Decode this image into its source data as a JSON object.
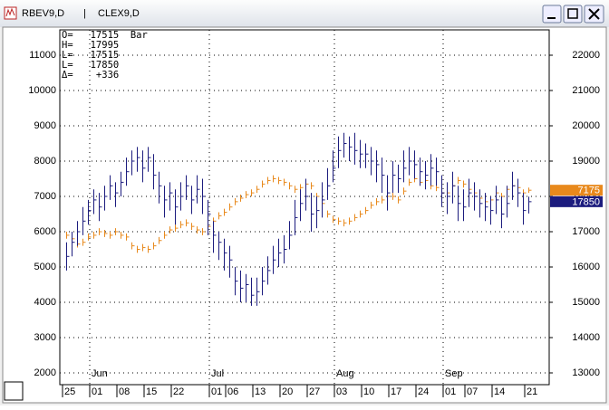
{
  "chart_data": {
    "type": "ohlc",
    "info_lines": [
      "O=   17515  Bar",
      "H=   17995",
      "L=   17515",
      "L=   17850",
      "Δ=    +336"
    ],
    "categories": [
      "25",
      null,
      null,
      null,
      null,
      "01",
      null,
      null,
      null,
      null,
      "08",
      null,
      null,
      null,
      null,
      "15",
      null,
      null,
      null,
      null,
      "22",
      null,
      null,
      null,
      null,
      null,
      null,
      "01",
      null,
      null,
      "06",
      null,
      null,
      null,
      null,
      "13",
      null,
      null,
      null,
      null,
      "20",
      null,
      null,
      null,
      null,
      "27",
      null,
      null,
      null,
      null,
      "03",
      null,
      null,
      null,
      null,
      "10",
      null,
      null,
      null,
      null,
      "17",
      null,
      null,
      null,
      null,
      "24",
      null,
      null,
      null,
      null,
      "01",
      null,
      null,
      null,
      "07",
      null,
      null,
      null,
      null,
      "14",
      null,
      null,
      null,
      null,
      null,
      "21"
    ],
    "months": [
      null,
      null,
      null,
      null,
      null,
      "Jun",
      null,
      null,
      null,
      null,
      null,
      null,
      null,
      null,
      null,
      null,
      null,
      null,
      null,
      null,
      null,
      null,
      null,
      null,
      null,
      null,
      null,
      "Jul",
      null,
      null,
      null,
      null,
      null,
      null,
      null,
      null,
      null,
      null,
      null,
      null,
      null,
      null,
      null,
      null,
      null,
      null,
      null,
      null,
      null,
      null,
      "Aug",
      null,
      null,
      null,
      null,
      null,
      null,
      null,
      null,
      null,
      null,
      null,
      null,
      null,
      null,
      null,
      null,
      null,
      null,
      null,
      "Sep",
      null,
      null,
      null,
      null,
      null,
      null,
      null,
      null,
      null,
      null,
      null,
      null,
      null,
      null,
      null
    ],
    "ylim": [
      1667,
      11718
    ],
    "yticks": [
      2000,
      3000,
      4000,
      5000,
      6000,
      7000,
      8000,
      9000,
      10000,
      11000
    ],
    "y2lim": [
      12667,
      22718
    ],
    "y2ticks": [
      13000,
      14000,
      15000,
      16000,
      17000,
      18000,
      19000,
      20000,
      21000,
      22000
    ],
    "grid": true,
    "series": [
      {
        "name": "RBEV9,D",
        "color": "#e8891c",
        "axis": "y",
        "high": [
          6000,
          5900,
          5750,
          5800,
          5950,
          6000,
          6100,
          6050,
          6000,
          6100,
          6000,
          5950,
          5700,
          5600,
          5650,
          5600,
          5700,
          5850,
          6000,
          6150,
          6200,
          6300,
          6350,
          6250,
          6150,
          6100,
          6250,
          6400,
          6550,
          6650,
          6800,
          6950,
          7050,
          7150,
          7200,
          7300,
          7450,
          7550,
          7600,
          7550,
          7500,
          7400,
          7300,
          7350,
          7450,
          7400,
          7100,
          6900,
          6600,
          6450,
          6400,
          6350,
          6400,
          6500,
          6600,
          6700,
          6850,
          6950,
          7000,
          7100,
          7100,
          7000,
          7250,
          7500,
          7600,
          7500,
          7550,
          7400,
          7350,
          7200,
          7200,
          7400,
          7550,
          7450,
          7300,
          7200,
          7050,
          6950,
          7000,
          7200,
          7100,
          7300,
          7400,
          7350,
          7200,
          7250
        ],
        "low": [
          5800,
          5700,
          5550,
          5600,
          5750,
          5800,
          5900,
          5850,
          5800,
          5900,
          5800,
          5750,
          5500,
          5400,
          5450,
          5400,
          5500,
          5650,
          5800,
          5950,
          6000,
          6100,
          6150,
          6050,
          5950,
          5900,
          6050,
          6200,
          6350,
          6450,
          6600,
          6750,
          6850,
          6950,
          7000,
          7100,
          7250,
          7350,
          7400,
          7350,
          7300,
          7200,
          7100,
          7150,
          7250,
          7200,
          6900,
          6700,
          6400,
          6250,
          6200,
          6150,
          6200,
          6300,
          6400,
          6500,
          6650,
          6750,
          6800,
          6900,
          6900,
          6800,
          7050,
          7300,
          7400,
          7300,
          7350,
          7200,
          7150,
          7000,
          7000,
          7200,
          7350,
          7250,
          7100,
          7000,
          6850,
          6750,
          6800,
          7000,
          6900,
          7100,
          7200,
          7150,
          7000,
          7100
        ],
        "close": [
          5900,
          5800,
          5650,
          5700,
          5850,
          5900,
          6000,
          5950,
          5900,
          6000,
          5900,
          5850,
          5600,
          5500,
          5550,
          5500,
          5600,
          5750,
          5900,
          6050,
          6100,
          6200,
          6250,
          6150,
          6050,
          6000,
          6150,
          6300,
          6450,
          6550,
          6700,
          6850,
          6950,
          7050,
          7100,
          7200,
          7350,
          7450,
          7500,
          7450,
          7400,
          7300,
          7200,
          7250,
          7350,
          7300,
          7000,
          6800,
          6500,
          6350,
          6300,
          6250,
          6300,
          6400,
          6500,
          6600,
          6750,
          6850,
          6900,
          7000,
          7000,
          6900,
          7150,
          7400,
          7500,
          7400,
          7450,
          7300,
          7250,
          7100,
          7100,
          7300,
          7450,
          7350,
          7200,
          7100,
          6950,
          6850,
          6900,
          7100,
          7000,
          7200,
          7300,
          7250,
          7100,
          7175
        ]
      },
      {
        "name": "CLEX9,D",
        "color": "#1c1c7e",
        "axis": "y2",
        "high": [
          16700,
          17000,
          17300,
          17700,
          17900,
          18200,
          18100,
          18300,
          18600,
          18400,
          18700,
          19100,
          19300,
          19400,
          19300,
          19400,
          19200,
          18700,
          18300,
          18400,
          18200,
          18400,
          18600,
          18300,
          18600,
          18500,
          17900,
          17300,
          17000,
          16800,
          16600,
          16000,
          15900,
          15800,
          15700,
          15700,
          16000,
          16300,
          16600,
          16800,
          16900,
          17300,
          17900,
          18200,
          18500,
          18100,
          18000,
          18400,
          18800,
          19300,
          19700,
          19800,
          19700,
          19800,
          19600,
          19500,
          19400,
          19300,
          19100,
          18600,
          19000,
          18900,
          19300,
          19400,
          19300,
          19100,
          19000,
          19200,
          19100,
          18600,
          18400,
          18700,
          18300,
          18200,
          18500,
          18400,
          18200,
          18100,
          18000,
          18300,
          18000,
          18300,
          18700,
          18500,
          18100,
          17995
        ],
        "low": [
          15900,
          16300,
          16600,
          16900,
          17200,
          17500,
          17300,
          17600,
          17900,
          17700,
          18000,
          18300,
          18600,
          18700,
          18400,
          18700,
          18200,
          17800,
          17400,
          17600,
          17200,
          17600,
          17900,
          17500,
          17800,
          17500,
          16900,
          16400,
          16200,
          15900,
          15700,
          15200,
          15000,
          15000,
          14900,
          14900,
          15200,
          15500,
          15800,
          16000,
          16100,
          16500,
          16900,
          17300,
          17600,
          17000,
          17100,
          17400,
          17900,
          18400,
          18800,
          19100,
          19000,
          18900,
          18800,
          18800,
          18600,
          18400,
          18100,
          17600,
          18100,
          18100,
          18400,
          18600,
          18500,
          18300,
          18200,
          18300,
          18300,
          17700,
          17500,
          17800,
          17300,
          17300,
          17700,
          17600,
          17400,
          17300,
          17200,
          17500,
          17100,
          17400,
          17900,
          17700,
          17200,
          17515
        ],
        "close": [
          16300,
          16700,
          17000,
          17300,
          17600,
          17900,
          17700,
          18000,
          18300,
          18100,
          18400,
          18700,
          19000,
          19100,
          18800,
          19100,
          18600,
          18300,
          17900,
          18100,
          17700,
          18000,
          18300,
          17900,
          18200,
          18000,
          17500,
          16900,
          16700,
          16400,
          16200,
          15600,
          15400,
          15500,
          15200,
          15300,
          15600,
          15900,
          16200,
          16400,
          16500,
          16900,
          17400,
          17800,
          18000,
          17500,
          17600,
          17900,
          18300,
          18800,
          19300,
          19500,
          19400,
          19300,
          19200,
          19200,
          19000,
          18900,
          18600,
          18100,
          18600,
          18500,
          18800,
          19000,
          18900,
          18700,
          18600,
          18800,
          18700,
          18100,
          18000,
          18300,
          17800,
          17700,
          18100,
          18000,
          17800,
          17700,
          17600,
          17900,
          17500,
          17800,
          18300,
          18100,
          17600,
          17850
        ]
      }
    ]
  }
}
